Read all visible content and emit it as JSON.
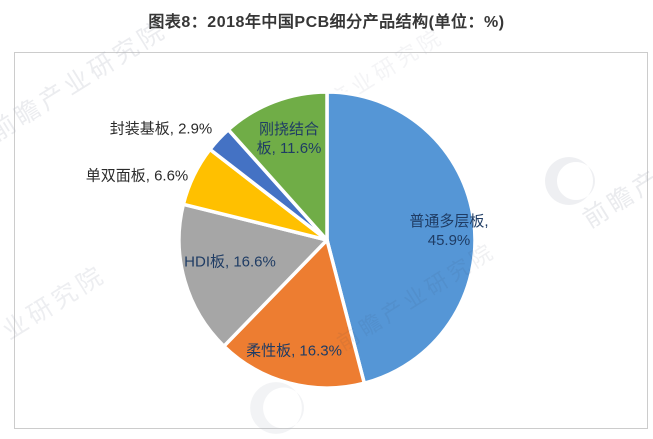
{
  "title": "图表8：2018年中国PCB细分产品结构(单位：%)",
  "watermark": {
    "brand": "前瞻产业研究院",
    "short": "产业研究院"
  },
  "chart_data": {
    "type": "pie",
    "title": "2018年中国PCB细分产品结构",
    "unit": "%",
    "start_angle_deg": 0,
    "direction": "clockwise",
    "slices": [
      {
        "name": "普通多层板",
        "value": 45.9,
        "color": "#5596d6",
        "label_lines": [
          "普通多层板,",
          "45.9%"
        ],
        "label_placement": "inside"
      },
      {
        "name": "柔性板",
        "value": 16.3,
        "color": "#ed7d31",
        "label_lines": [
          "柔性板, 16.3%"
        ],
        "label_placement": "inside"
      },
      {
        "name": "HDI板",
        "value": 16.6,
        "color": "#a6a6a6",
        "label_lines": [
          "HDI板, 16.6%"
        ],
        "label_placement": "inside"
      },
      {
        "name": "单双面板",
        "value": 6.6,
        "color": "#ffc000",
        "label_lines": [
          "单双面板, 6.6%"
        ],
        "label_placement": "outside"
      },
      {
        "name": "封装基板",
        "value": 2.9,
        "color": "#4472c4",
        "label_lines": [
          "封装基板, 2.9%"
        ],
        "label_placement": "outside"
      },
      {
        "name": "刚挠结合板",
        "value": 11.6,
        "color": "#70ad47",
        "label_lines": [
          "刚挠结合",
          "板, 11.6%"
        ],
        "label_placement": "inside"
      }
    ],
    "label_colors": {
      "inside": "#1f3c64",
      "outside": "#2b2b2b"
    },
    "slice_border_color": "#ffffff",
    "legend": "none"
  }
}
